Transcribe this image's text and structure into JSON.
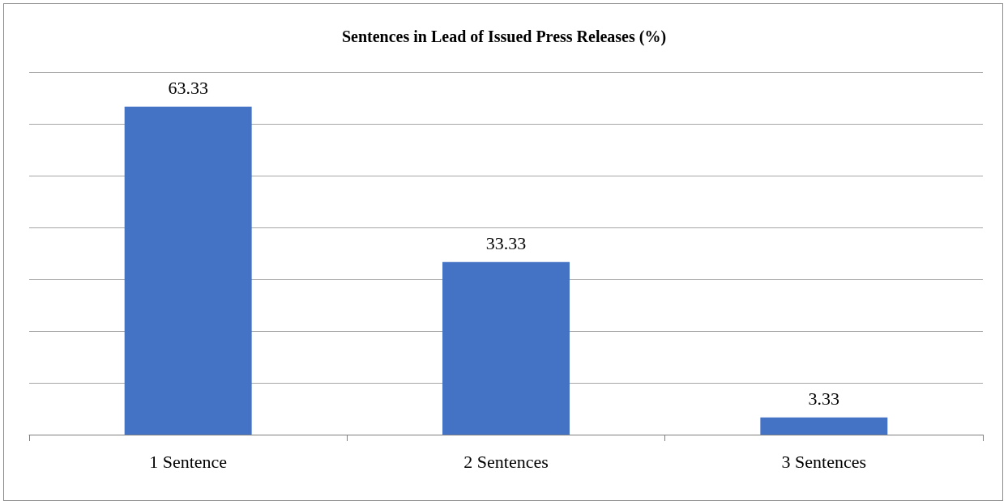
{
  "chart_data": {
    "type": "bar",
    "title": "Sentences in Lead of Issued Press Releases (%)",
    "categories": [
      "1 Sentence",
      "2 Sentences",
      "3 Sentences"
    ],
    "values": [
      63.33,
      33.33,
      3.33
    ],
    "color": "#4472c4",
    "ylim": [
      0,
      70
    ],
    "yticks": [
      {
        "value": 0,
        "label": null
      },
      {
        "value": 10,
        "label": null
      },
      {
        "value": 20,
        "label": null
      },
      {
        "value": 30,
        "label": null
      },
      {
        "value": 40,
        "label": null
      },
      {
        "value": 50,
        "label": null
      },
      {
        "value": 60,
        "label": null
      },
      {
        "value": 70,
        "label": null
      }
    ],
    "tick_labels": "x",
    "grid": "y",
    "data_labels": true
  }
}
